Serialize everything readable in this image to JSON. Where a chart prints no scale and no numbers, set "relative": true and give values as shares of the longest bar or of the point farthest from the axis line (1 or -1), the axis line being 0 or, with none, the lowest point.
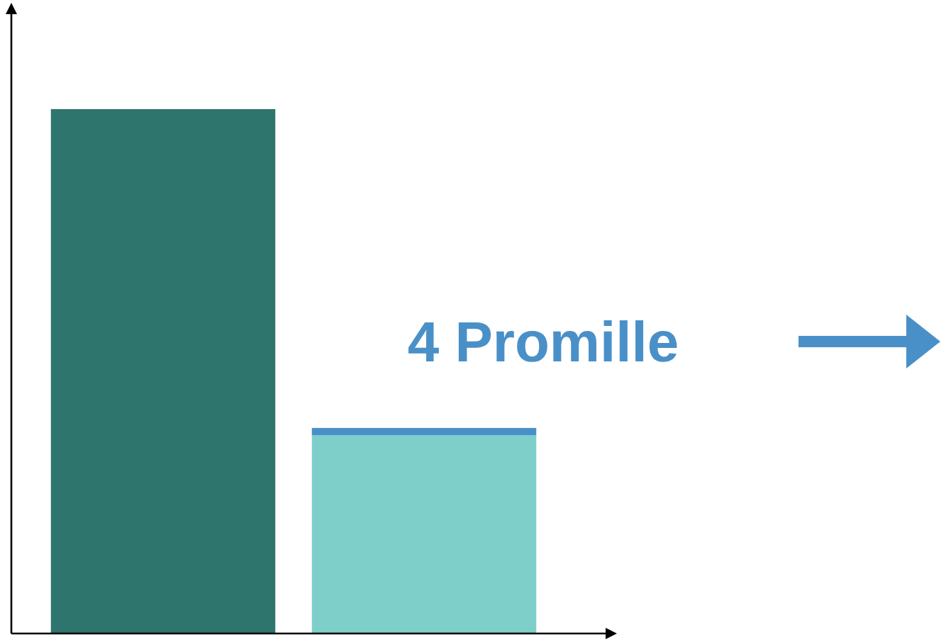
{
  "chart_data": {
    "type": "bar",
    "relative": true,
    "stacked": true,
    "categories": [
      null,
      null
    ],
    "series": [
      {
        "colors": [
          "#2e756d",
          "#7ecfca"
        ],
        "values": [
          1,
          0.378
        ]
      },
      {
        "color": "#4a90c8",
        "values": [
          0,
          0.014
        ]
      }
    ],
    "annotations": [
      "4 Promille"
    ]
  }
}
